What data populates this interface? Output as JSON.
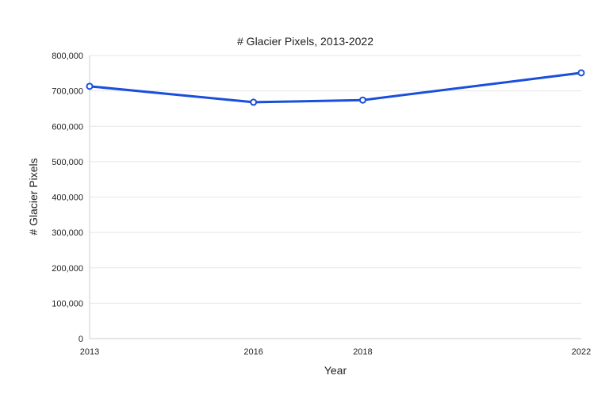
{
  "chart_data": {
    "type": "line",
    "title": "# Glacier Pixels, 2013-2022",
    "xlabel": "Year",
    "ylabel": "# Glacier Pixels",
    "x": [
      2013,
      2016,
      2018,
      2022
    ],
    "x_tick_labels": [
      "2013",
      "2016",
      "2018",
      "2022"
    ],
    "series": [
      {
        "values": [
          713000,
          668000,
          674000,
          751000
        ]
      }
    ],
    "ylim": [
      0,
      800000
    ],
    "y_ticks": [
      0,
      100000,
      200000,
      300000,
      400000,
      500000,
      600000,
      700000,
      800000
    ],
    "y_tick_labels": [
      "0",
      "100,000",
      "200,000",
      "300,000",
      "400,000",
      "500,000",
      "600,000",
      "700,000",
      "800,000"
    ],
    "grid": true,
    "legend": "none",
    "line_color": "#1a4fdb"
  }
}
